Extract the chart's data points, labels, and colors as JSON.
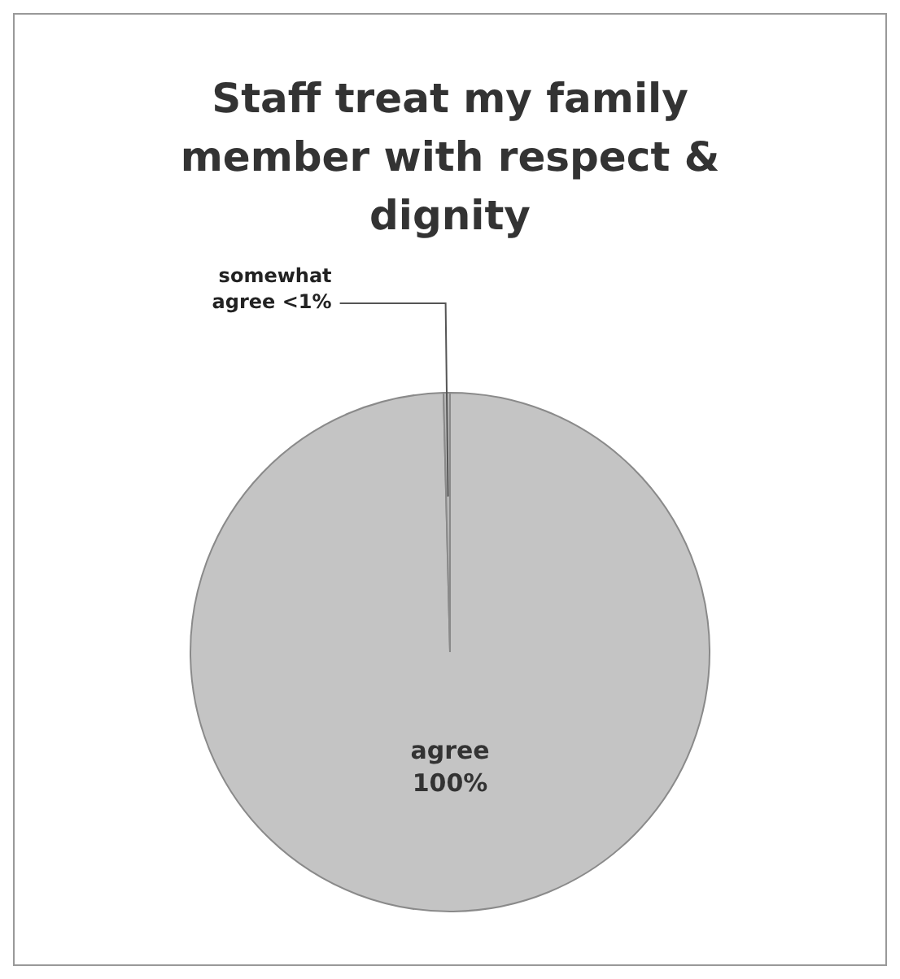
{
  "chart_data": {
    "type": "pie",
    "title": "Staff treat my family member with respect & dignity",
    "categories": [
      "agree",
      "somewhat agree"
    ],
    "values": [
      99.6,
      0.4
    ],
    "value_labels": [
      "100%",
      "<1%"
    ],
    "colors": [
      "#c4c4c4",
      "#b8b8b8"
    ],
    "legend": false
  }
}
